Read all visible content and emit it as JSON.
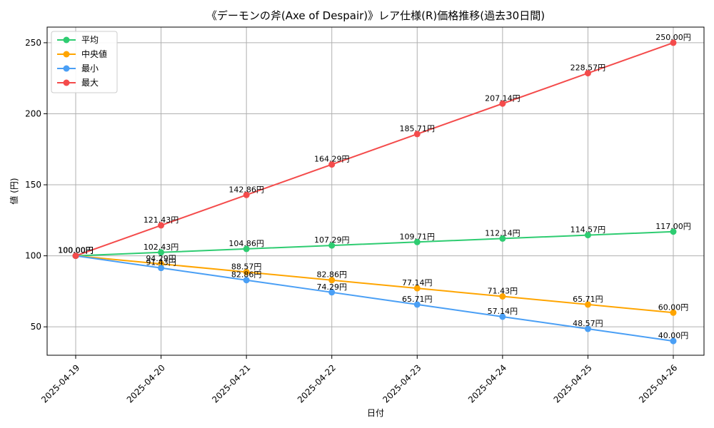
{
  "chart_data": {
    "type": "line",
    "title": "《デーモンの斧(Axe of Despair)》レア仕様(R)価格推移(過去30日間)",
    "xlabel": "日付",
    "ylabel": "値 (円)",
    "categories": [
      "2025-04-19",
      "2025-04-20",
      "2025-04-21",
      "2025-04-22",
      "2025-04-23",
      "2025-04-24",
      "2025-04-25",
      "2025-04-26"
    ],
    "ylim": [
      30,
      261
    ],
    "yticks": [
      50,
      100,
      150,
      200,
      250
    ],
    "grid": true,
    "legend_position": "upper-left",
    "value_suffix": "円",
    "series": [
      {
        "name": "平均",
        "color": "#2ecc71",
        "values": [
          100.0,
          102.43,
          104.86,
          107.29,
          109.71,
          112.14,
          114.57,
          117.0
        ]
      },
      {
        "name": "中央値",
        "color": "#ffa500",
        "values": [
          100.0,
          94.29,
          88.57,
          82.86,
          77.14,
          71.43,
          65.71,
          60.0
        ]
      },
      {
        "name": "最小",
        "color": "#4a9ff5",
        "values": [
          100.0,
          91.43,
          82.86,
          74.29,
          65.71,
          57.14,
          48.57,
          40.0
        ]
      },
      {
        "name": "最大",
        "color": "#f44b4b",
        "values": [
          100.0,
          121.43,
          142.86,
          164.29,
          185.71,
          207.14,
          228.57,
          250.0
        ]
      }
    ]
  }
}
